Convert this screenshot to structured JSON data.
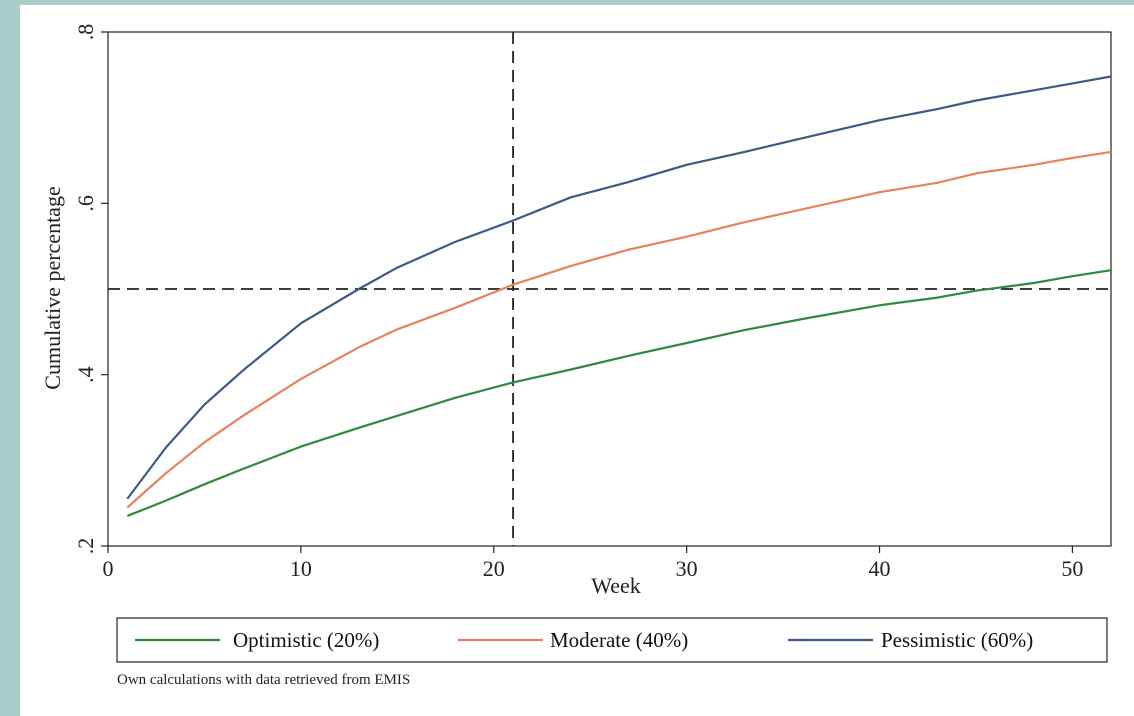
{
  "chart_data": {
    "type": "line",
    "xlabel": "Week",
    "ylabel": "Cumulative percentage",
    "xlim": [
      0,
      52
    ],
    "ylim": [
      0.2,
      0.8
    ],
    "x_ticks": [
      0,
      10,
      20,
      30,
      40,
      50
    ],
    "x_tick_labels": [
      "0",
      "10",
      "20",
      "30",
      "40",
      "50"
    ],
    "y_ticks": [
      0.2,
      0.4,
      0.6,
      0.8
    ],
    "y_tick_labels": [
      ".2",
      ".4",
      ".6",
      ".8"
    ],
    "grid": false,
    "legend_position": "bottom",
    "reference_lines": [
      {
        "orientation": "vertical",
        "x": 21,
        "style": "dashed"
      },
      {
        "orientation": "horizontal",
        "y": 0.5,
        "style": "dashed"
      }
    ],
    "series": [
      {
        "name": "Optimistic (20%)",
        "color": "#2e8b3c",
        "x": [
          1,
          3,
          5,
          7,
          10,
          13,
          15,
          18,
          21,
          24,
          27,
          30,
          33,
          36,
          40,
          43,
          45,
          48,
          50,
          52
        ],
        "values": [
          0.235,
          0.253,
          0.272,
          0.29,
          0.316,
          0.338,
          0.352,
          0.373,
          0.391,
          0.406,
          0.422,
          0.437,
          0.452,
          0.465,
          0.481,
          0.49,
          0.498,
          0.507,
          0.515,
          0.522
        ]
      },
      {
        "name": "Moderate (40%)",
        "color": "#e8825a",
        "x": [
          1,
          3,
          5,
          7,
          10,
          13,
          15,
          18,
          21,
          24,
          27,
          30,
          33,
          36,
          40,
          43,
          45,
          48,
          50,
          52
        ],
        "values": [
          0.245,
          0.285,
          0.321,
          0.352,
          0.395,
          0.432,
          0.453,
          0.478,
          0.505,
          0.527,
          0.546,
          0.561,
          0.578,
          0.593,
          0.613,
          0.624,
          0.635,
          0.645,
          0.653,
          0.66
        ]
      },
      {
        "name": "Pessimistic (60%)",
        "color": "#3b5a85",
        "x": [
          1,
          3,
          5,
          7,
          10,
          13,
          15,
          18,
          21,
          24,
          27,
          30,
          33,
          36,
          40,
          43,
          45,
          48,
          50,
          52
        ],
        "values": [
          0.255,
          0.315,
          0.365,
          0.405,
          0.46,
          0.5,
          0.525,
          0.555,
          0.58,
          0.607,
          0.625,
          0.645,
          0.66,
          0.676,
          0.697,
          0.71,
          0.72,
          0.732,
          0.74,
          0.748
        ]
      }
    ]
  },
  "note": "Own calculations with data retrieved from EMIS"
}
